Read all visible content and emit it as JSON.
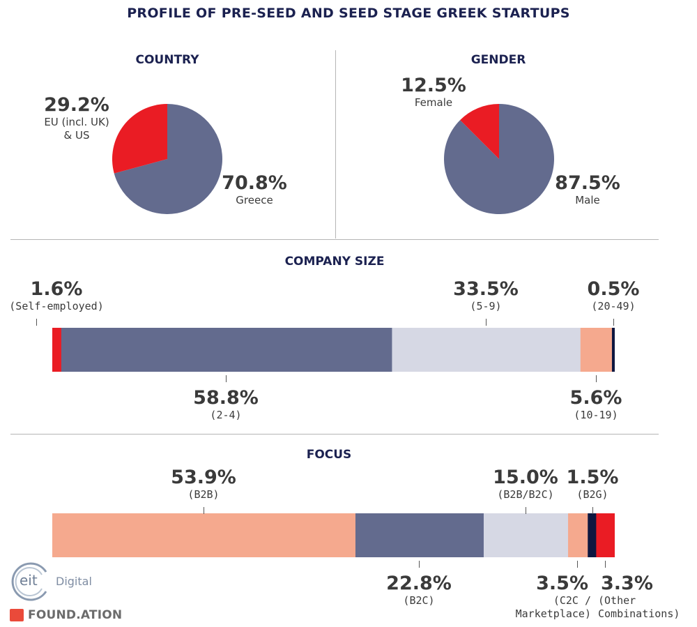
{
  "title": "PROFILE OF PRE-SEED AND SEED STAGE GREEK STARTUPS",
  "colors": {
    "navy_slate": "#636b8e",
    "red": "#ea1c24",
    "light_lavender": "#d6d8e4",
    "salmon": "#f5a98e",
    "dark_navy": "#0e1740",
    "title_navy": "#1b2150"
  },
  "chart_data": [
    {
      "type": "pie",
      "title": "COUNTRY",
      "slices": [
        {
          "pct_label": "70.8%",
          "label": "Greece",
          "value": 70.8,
          "color": "#636b8e"
        },
        {
          "pct_label": "29.2%",
          "label_lines": [
            "EU (incl. UK)",
            "& US"
          ],
          "value": 29.2,
          "color": "#ea1c24"
        }
      ]
    },
    {
      "type": "pie",
      "title": "GENDER",
      "slices": [
        {
          "pct_label": "87.5%",
          "label": "Male",
          "value": 87.5,
          "color": "#636b8e"
        },
        {
          "pct_label": "12.5%",
          "label": "Female",
          "value": 12.5,
          "color": "#ea1c24"
        }
      ]
    },
    {
      "type": "bar",
      "orientation": "horizontal-stacked",
      "title": "COMPANY SIZE",
      "segments": [
        {
          "pct_label": "1.6%",
          "label": "(Self-employed)",
          "value": 1.6,
          "color": "#ea1c24"
        },
        {
          "pct_label": "58.8%",
          "label": "(2-4)",
          "value": 58.8,
          "color": "#636b8e"
        },
        {
          "pct_label": "33.5%",
          "label": "(5-9)",
          "value": 33.5,
          "color": "#d6d8e4"
        },
        {
          "pct_label": "5.6%",
          "label": "(10-19)",
          "value": 5.6,
          "color": "#f5a98e"
        },
        {
          "pct_label": "0.5%",
          "label": "(20-49)",
          "value": 0.5,
          "color": "#0e1740"
        }
      ]
    },
    {
      "type": "bar",
      "orientation": "horizontal-stacked",
      "title": "FOCUS",
      "segments": [
        {
          "pct_label": "53.9%",
          "label": "(B2B)",
          "value": 53.9,
          "color": "#f5a98e"
        },
        {
          "pct_label": "22.8%",
          "label": "(B2C)",
          "value": 22.8,
          "color": "#636b8e"
        },
        {
          "pct_label": "15.0%",
          "label": "(B2B/B2C)",
          "value": 15.0,
          "color": "#d6d8e4"
        },
        {
          "pct_label": "3.5%",
          "label_lines": [
            "(C2C /",
            "Marketplace)"
          ],
          "value": 3.5,
          "color": "#f5a98e"
        },
        {
          "pct_label": "1.5%",
          "label": "(B2G)",
          "value": 1.5,
          "color": "#0e1740"
        },
        {
          "pct_label": "3.3%",
          "label_lines": [
            "(Other",
            "Combinations)"
          ],
          "value": 3.3,
          "color": "#ea1c24"
        }
      ]
    }
  ],
  "logos": {
    "eit": "eit",
    "digital": "Digital",
    "foundation": "FOUND.ATION"
  }
}
